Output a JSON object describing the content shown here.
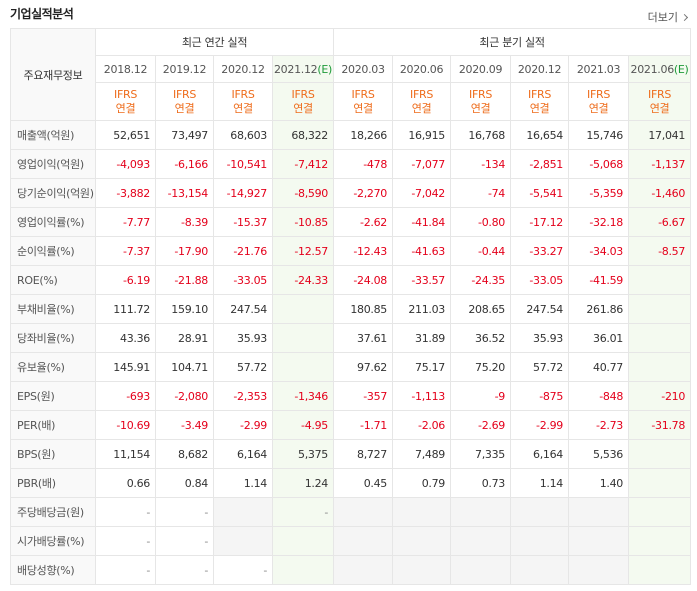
{
  "header": {
    "title": "기업실적분석",
    "more": "더보기"
  },
  "table": {
    "corner": "주요재무정보",
    "groups": [
      {
        "label": "최근 연간 실적",
        "columns": [
          {
            "period": "2018.12",
            "basis": "IFRS",
            "scope": "연결"
          },
          {
            "period": "2019.12",
            "basis": "IFRS",
            "scope": "연결"
          },
          {
            "period": "2020.12",
            "basis": "IFRS",
            "scope": "연결"
          },
          {
            "period": "2021.12",
            "mark": "(E)",
            "basis": "IFRS",
            "scope": "연결"
          }
        ]
      },
      {
        "label": "최근 분기 실적",
        "columns": [
          {
            "period": "2020.03",
            "basis": "IFRS",
            "scope": "연결"
          },
          {
            "period": "2020.06",
            "basis": "IFRS",
            "scope": "연결"
          },
          {
            "period": "2020.09",
            "basis": "IFRS",
            "scope": "연결"
          },
          {
            "period": "2020.12",
            "basis": "IFRS",
            "scope": "연결"
          },
          {
            "period": "2021.03",
            "basis": "IFRS",
            "scope": "연결"
          },
          {
            "period": "2021.06",
            "mark": "(E)",
            "basis": "IFRS",
            "scope": "연결"
          }
        ]
      }
    ],
    "sections": [
      {
        "rows": [
          {
            "label": "매출액(억원)",
            "values": [
              "52,651",
              "73,497",
              "68,603",
              "68,322",
              "18,266",
              "16,915",
              "16,768",
              "16,654",
              "15,746",
              "17,041"
            ]
          },
          {
            "label": "영업이익(억원)",
            "values": [
              "-4,093",
              "-6,166",
              "-10,541",
              "-7,412",
              "-478",
              "-7,077",
              "-134",
              "-2,851",
              "-5,068",
              "-1,137"
            ]
          },
          {
            "label": "당기순이익(억원)",
            "values": [
              "-3,882",
              "-13,154",
              "-14,927",
              "-8,590",
              "-2,270",
              "-7,042",
              "-74",
              "-5,541",
              "-5,359",
              "-1,460"
            ]
          },
          {
            "label": "영업이익률(%)",
            "values": [
              "-7.77",
              "-8.39",
              "-15.37",
              "-10.85",
              "-2.62",
              "-41.84",
              "-0.80",
              "-17.12",
              "-32.18",
              "-6.67"
            ]
          },
          {
            "label": "순이익률(%)",
            "values": [
              "-7.37",
              "-17.90",
              "-21.76",
              "-12.57",
              "-12.43",
              "-41.63",
              "-0.44",
              "-33.27",
              "-34.03",
              "-8.57"
            ]
          },
          {
            "label": "ROE(%)",
            "values": [
              "-6.19",
              "-21.88",
              "-33.05",
              "-24.33",
              "-24.08",
              "-33.57",
              "-24.35",
              "-33.05",
              "-41.59",
              null
            ]
          }
        ]
      },
      {
        "rows": [
          {
            "label": "부채비율(%)",
            "values": [
              "111.72",
              "159.10",
              "247.54",
              null,
              "180.85",
              "211.03",
              "208.65",
              "247.54",
              "261.86",
              null
            ]
          },
          {
            "label": "당좌비율(%)",
            "values": [
              "43.36",
              "28.91",
              "35.93",
              null,
              "37.61",
              "31.89",
              "36.52",
              "35.93",
              "36.01",
              null
            ]
          },
          {
            "label": "유보율(%)",
            "values": [
              "145.91",
              "104.71",
              "57.72",
              null,
              "97.62",
              "75.17",
              "75.20",
              "57.72",
              "40.77",
              null
            ]
          }
        ]
      },
      {
        "rows": [
          {
            "label": "EPS(원)",
            "values": [
              "-693",
              "-2,080",
              "-2,353",
              "-1,346",
              "-357",
              "-1,113",
              "-9",
              "-875",
              "-848",
              "-210"
            ]
          },
          {
            "label": "PER(배)",
            "values": [
              "-10.69",
              "-3.49",
              "-2.99",
              "-4.95",
              "-1.71",
              "-2.06",
              "-2.69",
              "-2.99",
              "-2.73",
              "-31.78"
            ]
          },
          {
            "label": "BPS(원)",
            "values": [
              "11,154",
              "8,682",
              "6,164",
              "5,375",
              "8,727",
              "7,489",
              "7,335",
              "6,164",
              "5,536",
              null
            ]
          },
          {
            "label": "PBR(배)",
            "values": [
              "0.66",
              "0.84",
              "1.14",
              "1.24",
              "0.45",
              "0.79",
              "0.73",
              "1.14",
              "1.40",
              null
            ]
          }
        ]
      },
      {
        "rows": [
          {
            "label": "주당배당금(원)",
            "values": [
              "-",
              "-",
              null,
              "-",
              null,
              null,
              null,
              null,
              null,
              null
            ]
          },
          {
            "label": "시가배당률(%)",
            "values": [
              "-",
              "-",
              null,
              null,
              null,
              null,
              null,
              null,
              null,
              null
            ]
          },
          {
            "label": "배당성향(%)",
            "values": [
              "-",
              "-",
              "-",
              null,
              null,
              null,
              null,
              null,
              null,
              null
            ]
          }
        ]
      }
    ]
  }
}
